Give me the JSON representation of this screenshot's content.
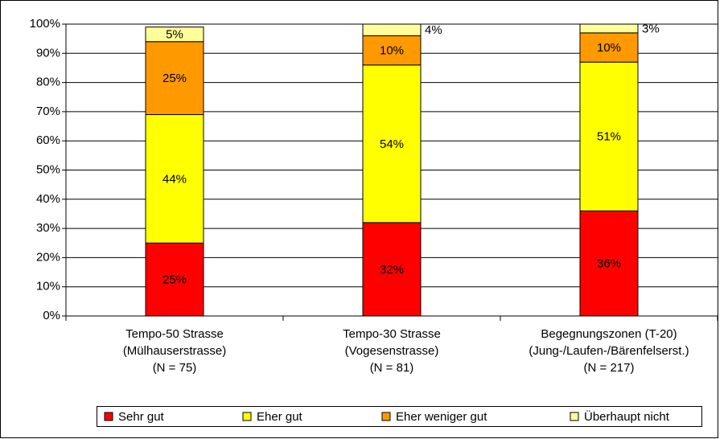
{
  "chart_data": {
    "type": "bar",
    "stacked": true,
    "categories": [
      "Tempo-50 Strasse\n(Mülhauserstrasse)\n(N = 75)",
      "Tempo-30 Strasse\n(Vogesenstrasse)\n(N = 81)",
      "Begegnungszonen (T-20)\n(Jung-/Laufen-/Bärenfelserst.)\n(N = 217)"
    ],
    "series": [
      {
        "name": "Sehr gut",
        "color": "#ff0000",
        "values": [
          25,
          32,
          36
        ],
        "value_labels": [
          "25%",
          "32%",
          "36%"
        ]
      },
      {
        "name": "Eher gut",
        "color": "#ffff00",
        "values": [
          44,
          54,
          51
        ],
        "value_labels": [
          "44%",
          "54%",
          "51%"
        ]
      },
      {
        "name": "Eher weniger gut",
        "color": "#ff9900",
        "values": [
          25,
          10,
          10
        ],
        "value_labels": [
          "25%",
          "10%",
          "10%"
        ]
      },
      {
        "name": "Überhaupt nicht",
        "color": "#ffff99",
        "values": [
          5,
          4,
          3
        ],
        "value_labels": [
          "5%",
          "4%",
          "3%"
        ]
      }
    ],
    "ylim": [
      0,
      100
    ],
    "yticks": [
      {
        "value": 0,
        "label": "0%"
      },
      {
        "value": 10,
        "label": "10%"
      },
      {
        "value": 20,
        "label": "20%"
      },
      {
        "value": 30,
        "label": "30%"
      },
      {
        "value": 40,
        "label": "40%"
      },
      {
        "value": 50,
        "label": "50%"
      },
      {
        "value": 60,
        "label": "60%"
      },
      {
        "value": 70,
        "label": "70%"
      },
      {
        "value": 80,
        "label": "80%"
      },
      {
        "value": 90,
        "label": "90%"
      },
      {
        "value": 100,
        "label": "100%"
      }
    ],
    "grid": true,
    "legend": "bottom"
  }
}
